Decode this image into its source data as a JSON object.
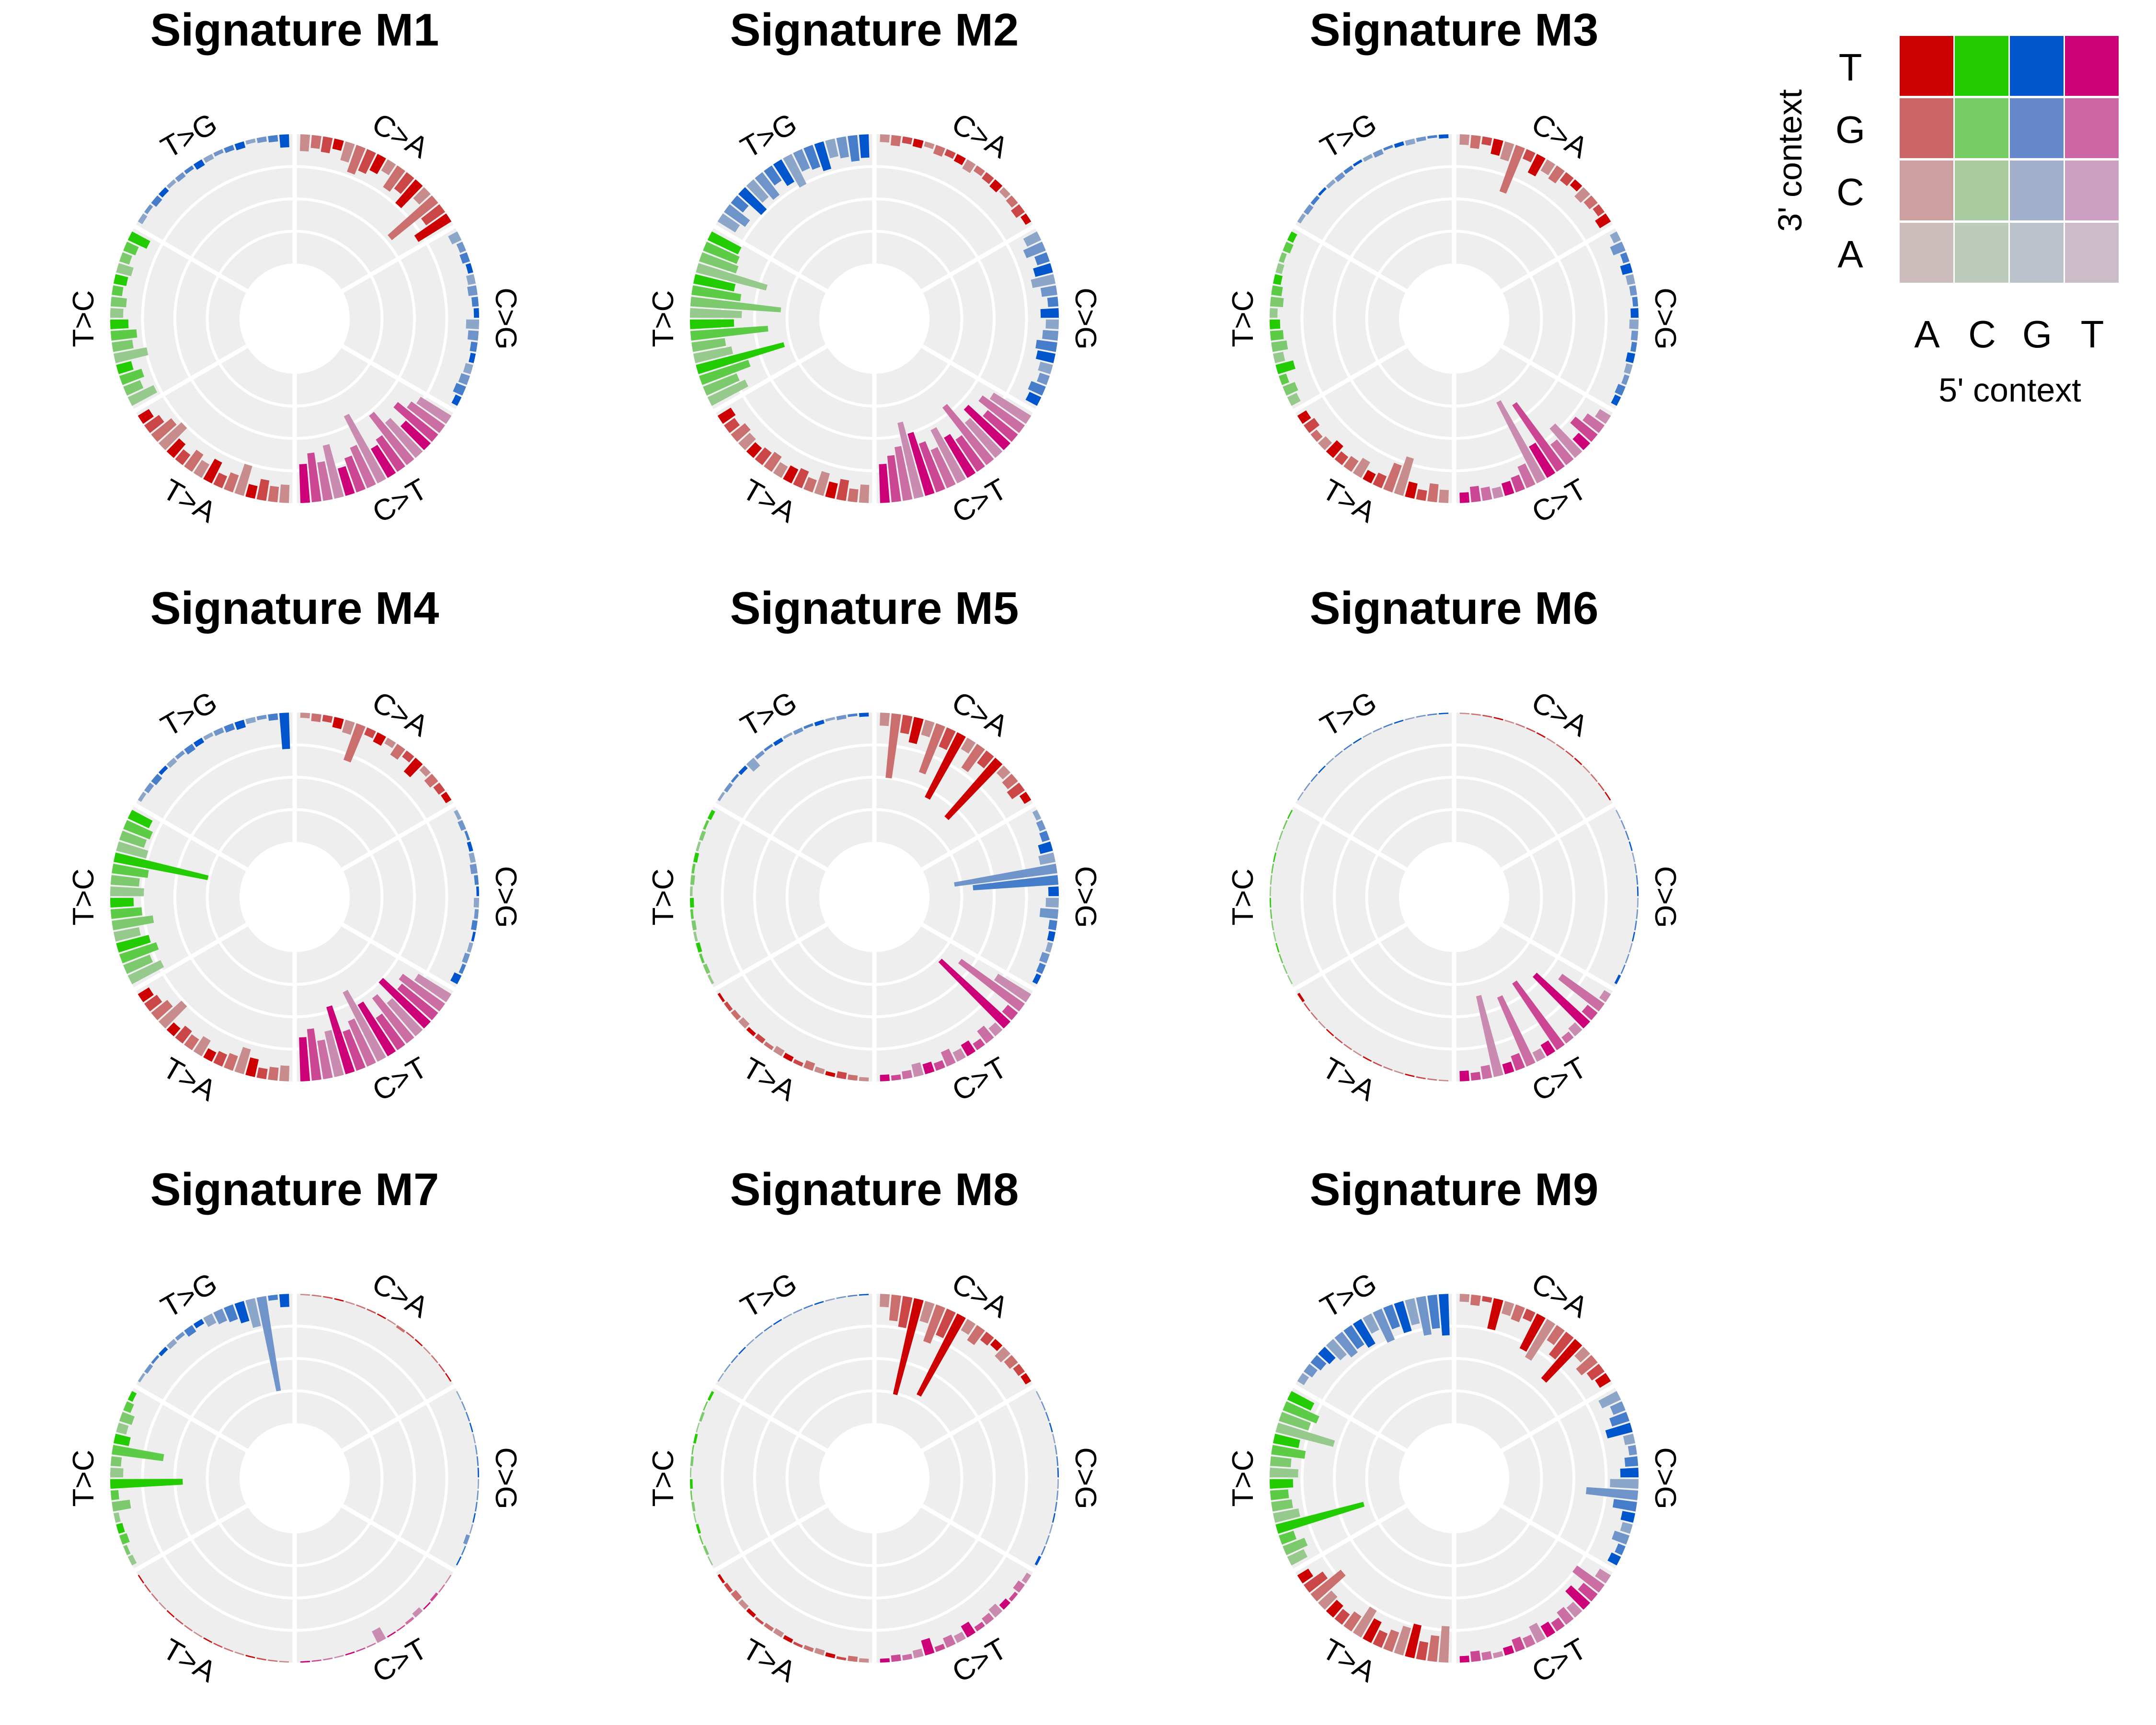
{
  "chart_data": {
    "type": "radial-bar",
    "mutation_types": [
      "C>A",
      "C>G",
      "C>T",
      "T>A",
      "T>C",
      "T>G"
    ],
    "base_colors": {
      "C>A": "#cc0000",
      "C>G": "#0055cc",
      "C>T": "#cc0077",
      "T>A": "#cc0000",
      "T>C": "#22cc00",
      "T>G": "#0055cc"
    },
    "context_order_5prime": [
      "A",
      "C",
      "G",
      "T"
    ],
    "context_order_3prime": [
      "A",
      "C",
      "G",
      "T"
    ],
    "rlim": [
      0,
      1
    ],
    "panels": [
      {
        "title": "Signature M1",
        "values": {
          "C>A": [
            0.13,
            0.1,
            0.12,
            0.08,
            0.15,
            0.22,
            0.18,
            0.14,
            0.1,
            0.2,
            0.16,
            0.24,
            0.12,
            0.46,
            0.18,
            0.3
          ],
          "C>G": [
            0.08,
            0.05,
            0.06,
            0.04,
            0.06,
            0.07,
            0.05,
            0.04,
            0.1,
            0.08,
            0.05,
            0.04,
            0.06,
            0.07,
            0.08,
            0.05
          ],
          "C>T": [
            0.28,
            0.32,
            0.4,
            0.26,
            0.36,
            0.48,
            0.3,
            0.26,
            0.58,
            0.34,
            0.28,
            0.22,
            0.42,
            0.3,
            0.38,
            0.3
          ],
          "T>A": [
            0.14,
            0.12,
            0.16,
            0.1,
            0.24,
            0.14,
            0.1,
            0.18,
            0.12,
            0.16,
            0.1,
            0.14,
            0.24,
            0.2,
            0.14,
            0.1
          ],
          "T>C": [
            0.22,
            0.14,
            0.18,
            0.12,
            0.26,
            0.16,
            0.2,
            0.14,
            0.1,
            0.12,
            0.08,
            0.1,
            0.12,
            0.08,
            0.1,
            0.16
          ],
          "T>G": [
            0.04,
            0.03,
            0.05,
            0.04,
            0.03,
            0.04,
            0.03,
            0.05,
            0.04,
            0.03,
            0.04,
            0.05,
            0.03,
            0.04,
            0.05,
            0.1
          ]
        }
      },
      {
        "title": "Signature M2",
        "values": {
          "C>A": [
            0.06,
            0.08,
            0.05,
            0.06,
            0.04,
            0.07,
            0.05,
            0.06,
            0.08,
            0.05,
            0.06,
            0.07,
            0.05,
            0.06,
            0.08,
            0.05
          ],
          "C>G": [
            0.12,
            0.16,
            0.1,
            0.14,
            0.18,
            0.12,
            0.08,
            0.14,
            0.1,
            0.12,
            0.16,
            0.14,
            0.1,
            0.08,
            0.12,
            0.1
          ],
          "C>T": [
            0.34,
            0.4,
            0.3,
            0.44,
            0.36,
            0.56,
            0.3,
            0.36,
            0.46,
            0.32,
            0.4,
            0.5,
            0.6,
            0.42,
            0.36,
            0.3
          ],
          "T>A": [
            0.14,
            0.1,
            0.16,
            0.12,
            0.18,
            0.1,
            0.14,
            0.12,
            0.1,
            0.14,
            0.12,
            0.1,
            0.12,
            0.14,
            0.1,
            0.12
          ],
          "T>C": [
            0.32,
            0.28,
            0.4,
            0.7,
            0.3,
            0.26,
            0.6,
            0.34,
            0.4,
            0.7,
            0.38,
            0.32,
            0.56,
            0.3,
            0.28,
            0.26
          ],
          "T>G": [
            0.16,
            0.2,
            0.12,
            0.24,
            0.18,
            0.22,
            0.14,
            0.2,
            0.26,
            0.16,
            0.18,
            0.22,
            0.14,
            0.16,
            0.2,
            0.18
          ]
        }
      },
      {
        "title": "Signature M3",
        "values": {
          "C>A": [
            0.08,
            0.1,
            0.06,
            0.12,
            0.14,
            0.38,
            0.08,
            0.16,
            0.1,
            0.12,
            0.08,
            0.06,
            0.1,
            0.08,
            0.06,
            0.1
          ],
          "C>G": [
            0.06,
            0.1,
            0.05,
            0.08,
            0.06,
            0.05,
            0.04,
            0.06,
            0.07,
            0.05,
            0.04,
            0.06,
            0.05,
            0.04,
            0.06,
            0.05
          ],
          "C>T": [
            0.1,
            0.16,
            0.22,
            0.12,
            0.3,
            0.2,
            0.62,
            0.28,
            0.7,
            0.18,
            0.12,
            0.1,
            0.08,
            0.1,
            0.12,
            0.08
          ],
          "T>A": [
            0.1,
            0.14,
            0.08,
            0.12,
            0.3,
            0.22,
            0.1,
            0.08,
            0.14,
            0.1,
            0.08,
            0.12,
            0.08,
            0.06,
            0.1,
            0.08
          ],
          "T>C": [
            0.08,
            0.1,
            0.06,
            0.14,
            0.08,
            0.12,
            0.1,
            0.08,
            0.06,
            0.1,
            0.08,
            0.06,
            0.05,
            0.04,
            0.06,
            0.05
          ],
          "T>G": [
            0.03,
            0.04,
            0.03,
            0.02,
            0.03,
            0.04,
            0.03,
            0.02,
            0.03,
            0.04,
            0.02,
            0.03,
            0.04,
            0.03,
            0.02,
            0.03
          ]
        }
      },
      {
        "title": "Signature M4",
        "values": {
          "C>A": [
            0.04,
            0.06,
            0.05,
            0.08,
            0.1,
            0.3,
            0.06,
            0.08,
            0.05,
            0.1,
            0.06,
            0.14,
            0.05,
            0.08,
            0.06,
            0.05
          ],
          "C>G": [
            0.03,
            0.04,
            0.02,
            0.03,
            0.04,
            0.05,
            0.03,
            0.02,
            0.04,
            0.03,
            0.04,
            0.02,
            0.03,
            0.04,
            0.03,
            0.06
          ],
          "C>T": [
            0.3,
            0.4,
            0.36,
            0.5,
            0.34,
            0.44,
            0.3,
            0.46,
            0.6,
            0.38,
            0.32,
            0.54,
            0.36,
            0.3,
            0.4,
            0.34
          ],
          "T>A": [
            0.12,
            0.1,
            0.08,
            0.14,
            0.2,
            0.12,
            0.1,
            0.08,
            0.14,
            0.1,
            0.12,
            0.08,
            0.24,
            0.16,
            0.12,
            0.1
          ],
          "T>C": [
            0.28,
            0.22,
            0.3,
            0.26,
            0.2,
            0.32,
            0.24,
            0.18,
            0.26,
            0.22,
            0.28,
            0.74,
            0.24,
            0.2,
            0.22,
            0.18
          ],
          "T>G": [
            0.03,
            0.04,
            0.05,
            0.03,
            0.04,
            0.03,
            0.05,
            0.04,
            0.03,
            0.04,
            0.05,
            0.06,
            0.04,
            0.03,
            0.05,
            0.28
          ]
        }
      },
      {
        "title": "Signature M5",
        "values": {
          "C>A": [
            0.1,
            0.5,
            0.14,
            0.2,
            0.12,
            0.4,
            0.16,
            0.56,
            0.1,
            0.22,
            0.12,
            0.6,
            0.08,
            0.1,
            0.12,
            0.06
          ],
          "C>G": [
            0.04,
            0.05,
            0.06,
            0.1,
            0.12,
            0.8,
            0.66,
            0.08,
            0.1,
            0.14,
            0.06,
            0.05,
            0.04,
            0.06,
            0.05,
            0.04
          ],
          "C>T": [
            0.3,
            0.6,
            0.1,
            0.72,
            0.08,
            0.12,
            0.06,
            0.1,
            0.08,
            0.12,
            0.06,
            0.08,
            0.1,
            0.06,
            0.04,
            0.05
          ],
          "T>A": [
            0.03,
            0.04,
            0.05,
            0.03,
            0.04,
            0.06,
            0.03,
            0.04,
            0.05,
            0.03,
            0.04,
            0.03,
            0.05,
            0.04,
            0.03,
            0.02
          ],
          "T>C": [
            0.02,
            0.03,
            0.02,
            0.03,
            0.02,
            0.03,
            0.02,
            0.03,
            0.02,
            0.03,
            0.02,
            0.03,
            0.02,
            0.03,
            0.02,
            0.03
          ],
          "T>G": [
            0.02,
            0.03,
            0.02,
            0.03,
            0.08,
            0.03,
            0.02,
            0.03,
            0.02,
            0.03,
            0.02,
            0.03,
            0.02,
            0.03,
            0.02,
            0.03
          ]
        }
      },
      {
        "title": "Signature M6",
        "values": {
          "C>A": [
            0.01,
            0.01,
            0.01,
            0.01,
            0.01,
            0.01,
            0.01,
            0.01,
            0.01,
            0.01,
            0.01,
            0.01,
            0.01,
            0.01,
            0.01,
            0.01
          ],
          "C>G": [
            0.01,
            0.01,
            0.01,
            0.01,
            0.01,
            0.01,
            0.01,
            0.01,
            0.01,
            0.01,
            0.01,
            0.01,
            0.01,
            0.01,
            0.01,
            0.02
          ],
          "C>T": [
            0.06,
            0.4,
            0.1,
            0.56,
            0.08,
            0.06,
            0.62,
            0.1,
            0.08,
            0.58,
            0.12,
            0.08,
            0.64,
            0.1,
            0.06,
            0.08
          ],
          "T>A": [
            0.01,
            0.01,
            0.01,
            0.01,
            0.01,
            0.01,
            0.01,
            0.01,
            0.01,
            0.01,
            0.01,
            0.01,
            0.01,
            0.01,
            0.01,
            0.02
          ],
          "T>C": [
            0.01,
            0.01,
            0.01,
            0.01,
            0.01,
            0.01,
            0.01,
            0.01,
            0.01,
            0.01,
            0.01,
            0.01,
            0.01,
            0.01,
            0.01,
            0.01
          ],
          "T>G": [
            0.01,
            0.01,
            0.01,
            0.01,
            0.01,
            0.01,
            0.01,
            0.01,
            0.01,
            0.01,
            0.01,
            0.01,
            0.01,
            0.01,
            0.01,
            0.01
          ]
        }
      },
      {
        "title": "Signature M7",
        "values": {
          "C>A": [
            0.01,
            0.01,
            0.01,
            0.01,
            0.01,
            0.01,
            0.01,
            0.01,
            0.01,
            0.02,
            0.01,
            0.01,
            0.01,
            0.01,
            0.01,
            0.01
          ],
          "C>G": [
            0.01,
            0.01,
            0.01,
            0.01,
            0.01,
            0.01,
            0.01,
            0.01,
            0.01,
            0.01,
            0.01,
            0.01,
            0.01,
            0.03,
            0.01,
            0.01
          ],
          "C>T": [
            0.01,
            0.01,
            0.02,
            0.01,
            0.04,
            0.02,
            0.01,
            0.01,
            0.1,
            0.01,
            0.01,
            0.01,
            0.01,
            0.01,
            0.01,
            0.01
          ],
          "T>A": [
            0.01,
            0.01,
            0.01,
            0.01,
            0.01,
            0.01,
            0.01,
            0.01,
            0.01,
            0.01,
            0.01,
            0.01,
            0.01,
            0.01,
            0.01,
            0.01
          ],
          "T>C": [
            0.04,
            0.03,
            0.06,
            0.05,
            0.04,
            0.14,
            0.06,
            0.56,
            0.1,
            0.08,
            0.4,
            0.12,
            0.08,
            0.1,
            0.06,
            0.04
          ],
          "T>G": [
            0.02,
            0.03,
            0.02,
            0.03,
            0.04,
            0.03,
            0.06,
            0.04,
            0.08,
            0.1,
            0.12,
            0.16,
            0.22,
            0.74,
            0.04,
            0.1
          ]
        }
      },
      {
        "title": "Signature M8",
        "values": {
          "C>A": [
            0.1,
            0.2,
            0.24,
            0.76,
            0.16,
            0.3,
            0.22,
            0.7,
            0.1,
            0.14,
            0.08,
            0.06,
            0.1,
            0.08,
            0.06,
            0.05
          ],
          "C>G": [
            0.01,
            0.01,
            0.01,
            0.01,
            0.01,
            0.01,
            0.01,
            0.01,
            0.01,
            0.01,
            0.01,
            0.01,
            0.01,
            0.01,
            0.01,
            0.02
          ],
          "C>T": [
            0.04,
            0.06,
            0.03,
            0.05,
            0.08,
            0.06,
            0.04,
            0.1,
            0.06,
            0.08,
            0.04,
            0.12,
            0.06,
            0.04,
            0.05,
            0.03
          ],
          "T>A": [
            0.03,
            0.04,
            0.02,
            0.03,
            0.04,
            0.03,
            0.02,
            0.03,
            0.04,
            0.03,
            0.02,
            0.03,
            0.04,
            0.05,
            0.03,
            0.02
          ],
          "T>C": [
            0.01,
            0.02,
            0.01,
            0.02,
            0.01,
            0.02,
            0.01,
            0.02,
            0.01,
            0.02,
            0.01,
            0.02,
            0.01,
            0.02,
            0.01,
            0.02
          ],
          "T>G": [
            0.01,
            0.01,
            0.01,
            0.01,
            0.01,
            0.01,
            0.01,
            0.01,
            0.01,
            0.01,
            0.01,
            0.01,
            0.01,
            0.01,
            0.01,
            0.01
          ]
        }
      },
      {
        "title": "Signature M9",
        "values": {
          "C>A": [
            0.06,
            0.08,
            0.04,
            0.24,
            0.1,
            0.12,
            0.08,
            0.3,
            0.34,
            0.14,
            0.22,
            0.4,
            0.1,
            0.16,
            0.12,
            0.1
          ],
          "C>G": [
            0.16,
            0.1,
            0.14,
            0.2,
            0.08,
            0.06,
            0.1,
            0.14,
            0.22,
            0.4,
            0.18,
            0.1,
            0.08,
            0.12,
            0.06,
            0.08
          ],
          "C>T": [
            0.1,
            0.26,
            0.14,
            0.2,
            0.1,
            0.12,
            0.08,
            0.1,
            0.14,
            0.08,
            0.1,
            0.06,
            0.04,
            0.06,
            0.08,
            0.05
          ],
          "T>A": [
            0.28,
            0.2,
            0.14,
            0.26,
            0.22,
            0.16,
            0.12,
            0.18,
            0.24,
            0.14,
            0.1,
            0.12,
            0.14,
            0.3,
            0.18,
            0.1
          ],
          "T>C": [
            0.14,
            0.18,
            0.12,
            0.7,
            0.2,
            0.16,
            0.14,
            0.18,
            0.22,
            0.16,
            0.26,
            0.2,
            0.46,
            0.24,
            0.28,
            0.2
          ],
          "T>G": [
            0.06,
            0.08,
            0.1,
            0.12,
            0.16,
            0.2,
            0.18,
            0.22,
            0.14,
            0.26,
            0.18,
            0.24,
            0.2,
            0.3,
            0.26,
            0.32
          ]
        }
      }
    ],
    "legend": {
      "row_labels": [
        "T",
        "G",
        "C",
        "A"
      ],
      "col_labels": [
        "A",
        "C",
        "G",
        "T"
      ],
      "ylabel": "3' context",
      "xlabel": "5' context",
      "colors": [
        [
          "#cc0000",
          "#22cc00",
          "#0055cc",
          "#cc0077"
        ],
        [
          "#cc6666",
          "#77cc66",
          "#6688cc",
          "#cc66a4"
        ],
        [
          "#cca0a0",
          "#a8cca0",
          "#a0b0cc",
          "#cca0c0"
        ],
        [
          "#ccbcbc",
          "#bccbbc",
          "#bcc2cc",
          "#ccbcc8"
        ]
      ]
    }
  }
}
